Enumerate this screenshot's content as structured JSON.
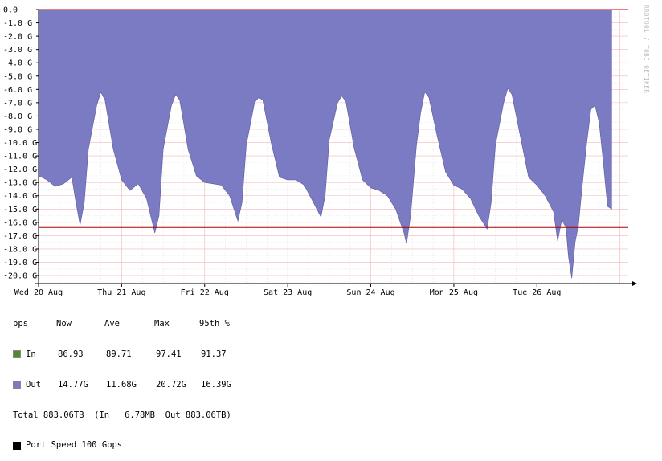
{
  "chart_data": {
    "type": "area",
    "side_label": "RRDTOOL / TOBI OETIKER",
    "y_ticks": [
      "0.0",
      "-1.0 G",
      "-2.0 G",
      "-3.0 G",
      "-4.0 G",
      "-5.0 G",
      "-6.0 G",
      "-7.0 G",
      "-8.0 G",
      "-9.0 G",
      "-10.0 G",
      "-11.0 G",
      "-12.0 G",
      "-13.0 G",
      "-14.0 G",
      "-15.0 G",
      "-16.0 G",
      "-17.0 G",
      "-18.0 G",
      "-19.0 G",
      "-20.0 G"
    ],
    "ylim": [
      -20.6,
      0
    ],
    "x_ticks": [
      "Wed 20 Aug",
      "Thu 21 Aug",
      "Fri 22 Aug",
      "Sat 23 Aug",
      "Sun 24 Aug",
      "Mon 25 Aug",
      "Tue 26 Aug"
    ],
    "x_days_range": [
      0,
      7.1
    ],
    "percentile_95_value": -16.39,
    "series": [
      {
        "name": "Out",
        "color": "#7b7bc4",
        "points_days_vs_G": [
          [
            0.0,
            -12.5
          ],
          [
            0.1,
            -12.8
          ],
          [
            0.2,
            -13.3
          ],
          [
            0.3,
            -13.1
          ],
          [
            0.4,
            -12.6
          ],
          [
            0.45,
            -14.5
          ],
          [
            0.5,
            -16.2
          ],
          [
            0.55,
            -14.5
          ],
          [
            0.6,
            -10.5
          ],
          [
            0.7,
            -7.2
          ],
          [
            0.75,
            -6.2
          ],
          [
            0.8,
            -6.8
          ],
          [
            0.9,
            -10.5
          ],
          [
            1.0,
            -12.8
          ],
          [
            1.1,
            -13.6
          ],
          [
            1.2,
            -13.1
          ],
          [
            1.3,
            -14.2
          ],
          [
            1.4,
            -16.8
          ],
          [
            1.45,
            -15.5
          ],
          [
            1.5,
            -10.5
          ],
          [
            1.6,
            -7.2
          ],
          [
            1.65,
            -6.4
          ],
          [
            1.7,
            -6.8
          ],
          [
            1.8,
            -10.5
          ],
          [
            1.9,
            -12.5
          ],
          [
            2.0,
            -13.0
          ],
          [
            2.1,
            -13.1
          ],
          [
            2.2,
            -13.2
          ],
          [
            2.3,
            -14.0
          ],
          [
            2.4,
            -15.9
          ],
          [
            2.45,
            -14.5
          ],
          [
            2.5,
            -10.2
          ],
          [
            2.6,
            -7.0
          ],
          [
            2.65,
            -6.6
          ],
          [
            2.7,
            -6.8
          ],
          [
            2.8,
            -10.0
          ],
          [
            2.9,
            -12.6
          ],
          [
            3.0,
            -12.8
          ],
          [
            3.1,
            -12.8
          ],
          [
            3.2,
            -13.2
          ],
          [
            3.3,
            -14.4
          ],
          [
            3.4,
            -15.6
          ],
          [
            3.45,
            -14.0
          ],
          [
            3.5,
            -9.8
          ],
          [
            3.6,
            -7.0
          ],
          [
            3.65,
            -6.5
          ],
          [
            3.7,
            -6.9
          ],
          [
            3.8,
            -10.4
          ],
          [
            3.9,
            -12.8
          ],
          [
            4.0,
            -13.4
          ],
          [
            4.1,
            -13.6
          ],
          [
            4.2,
            -14.0
          ],
          [
            4.3,
            -15.0
          ],
          [
            4.4,
            -16.8
          ],
          [
            4.43,
            -17.6
          ],
          [
            4.48,
            -15.5
          ],
          [
            4.55,
            -10.2
          ],
          [
            4.6,
            -7.8
          ],
          [
            4.65,
            -6.2
          ],
          [
            4.7,
            -6.6
          ],
          [
            4.8,
            -9.5
          ],
          [
            4.9,
            -12.2
          ],
          [
            5.0,
            -13.2
          ],
          [
            5.1,
            -13.5
          ],
          [
            5.2,
            -14.2
          ],
          [
            5.3,
            -15.5
          ],
          [
            5.4,
            -16.5
          ],
          [
            5.45,
            -14.5
          ],
          [
            5.5,
            -10.2
          ],
          [
            5.6,
            -7.0
          ],
          [
            5.65,
            -5.9
          ],
          [
            5.7,
            -6.4
          ],
          [
            5.8,
            -9.5
          ],
          [
            5.9,
            -12.6
          ],
          [
            6.0,
            -13.2
          ],
          [
            6.1,
            -14.0
          ],
          [
            6.2,
            -15.2
          ],
          [
            6.25,
            -17.4
          ],
          [
            6.3,
            -15.8
          ],
          [
            6.35,
            -16.4
          ],
          [
            6.38,
            -18.6
          ],
          [
            6.42,
            -20.2
          ],
          [
            6.46,
            -17.5
          ],
          [
            6.5,
            -16.2
          ],
          [
            6.55,
            -13.0
          ],
          [
            6.6,
            -10.0
          ],
          [
            6.65,
            -7.5
          ],
          [
            6.7,
            -7.2
          ],
          [
            6.75,
            -8.5
          ],
          [
            6.8,
            -11.5
          ],
          [
            6.85,
            -14.8
          ],
          [
            6.9,
            -15.0
          ]
        ]
      },
      {
        "name": "In",
        "color": "#4c8c2a"
      }
    ],
    "legend_header": [
      "bps",
      "Now",
      "Ave",
      "Max",
      "95th %"
    ],
    "legend_rows": [
      {
        "name": "In",
        "color": "#4c8c2a",
        "now": "86.93",
        "ave": "89.71",
        "max": "97.41",
        "p95": "91.37"
      },
      {
        "name": "Out",
        "color": "#7b7bc4",
        "now": "14.77G",
        "ave": "11.68G",
        "max": "20.72G",
        "p95": "16.39G"
      }
    ],
    "total_line": "Total 883.06TB  (In   6.78MB  Out 883.06TB)",
    "port_speed": {
      "label": "Port Speed 100 Gbps",
      "color": "#000000"
    },
    "grid": true,
    "percentile_line_color": "#aa0000"
  }
}
